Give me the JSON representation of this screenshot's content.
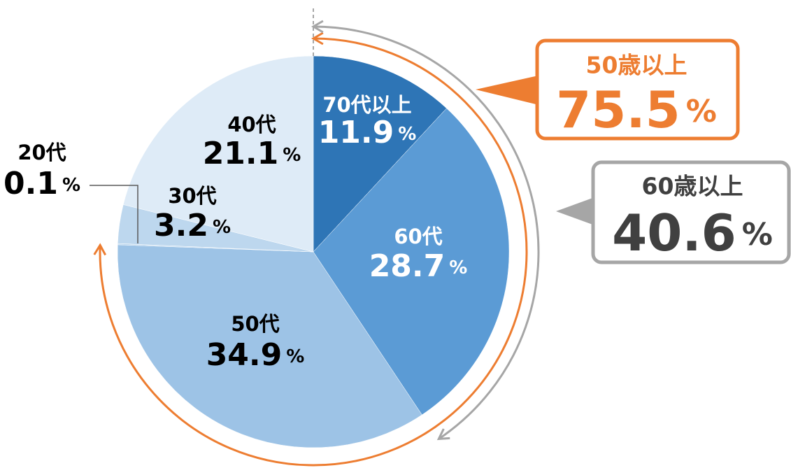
{
  "chart_data": {
    "type": "pie",
    "categories": [
      "70代以上",
      "60代",
      "50代",
      "20代",
      "30代",
      "40代"
    ],
    "values": [
      11.9,
      28.7,
      34.9,
      0.1,
      3.2,
      21.1
    ],
    "colors": [
      "#2e75b6",
      "#5b9bd5",
      "#9dc3e6",
      "#bdd7ee",
      "#bdd7ee",
      "#deebf7"
    ],
    "unit": "%",
    "annotations": [
      {
        "label": "50歳以上",
        "value": 75.5,
        "color": "#ed7d31"
      },
      {
        "label": "60歳以上",
        "value": 40.6,
        "color": "#a6a6a6"
      }
    ]
  }
}
